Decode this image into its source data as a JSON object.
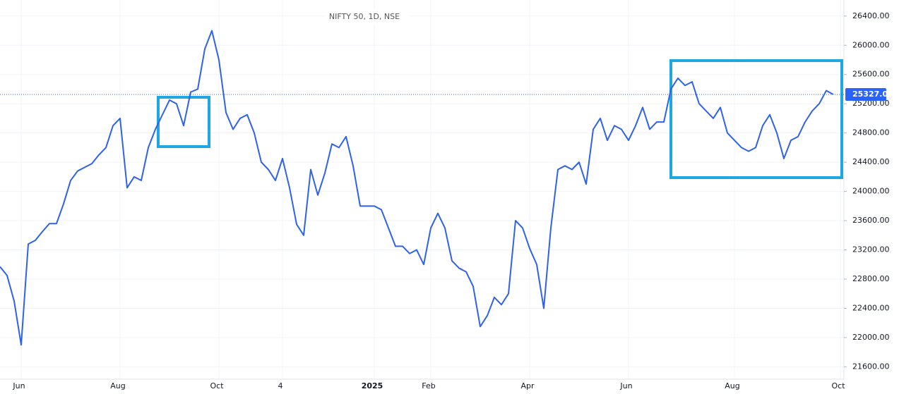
{
  "chart_data": {
    "type": "line",
    "title": "NIFTY 50, 1D, NSE",
    "categories": [
      null,
      null,
      null,
      "Jun",
      null,
      null,
      null,
      null,
      null,
      null,
      null,
      null,
      null,
      null,
      null,
      null,
      null,
      "Aug",
      null,
      null,
      null,
      null,
      null,
      null,
      null,
      null,
      null,
      null,
      null,
      null,
      null,
      "Oct",
      null,
      null,
      null,
      null,
      null,
      null,
      null,
      null,
      "4",
      null,
      null,
      null,
      null,
      null,
      null,
      null,
      null,
      null,
      null,
      null,
      null,
      "2025",
      null,
      null,
      null,
      null,
      null,
      null,
      null,
      "Feb",
      null,
      null,
      null,
      null,
      null,
      null,
      null,
      null,
      null,
      null,
      null,
      null,
      null,
      "Apr",
      null,
      null,
      null,
      null,
      null,
      null,
      null,
      null,
      null,
      null,
      null,
      null,
      null,
      "Jun",
      null,
      null,
      null,
      null,
      null,
      null,
      null,
      null,
      null,
      null,
      null,
      null,
      null,
      null,
      "Aug",
      null,
      null,
      null,
      null,
      null,
      null,
      null,
      null,
      null,
      null,
      null,
      null,
      null,
      null,
      "Oct"
    ],
    "series": [
      {
        "name": "NIFTY 50",
        "color": "#2f62e6",
        "values": [
          22970,
          22850,
          22500,
          21900,
          23280,
          23330,
          23450,
          23560,
          23560,
          23830,
          24150,
          24280,
          24330,
          24380,
          24500,
          24600,
          24900,
          25000,
          24050,
          24200,
          24150,
          24600,
          24850,
          25050,
          25250,
          25200,
          24900,
          25360,
          25400,
          25950,
          26200,
          25800,
          25080,
          24850,
          25000,
          25050,
          24800,
          24400,
          24300,
          24150,
          24450,
          24050,
          23550,
          23400,
          24300,
          23950,
          24250,
          24650,
          24600,
          24750,
          24350,
          23800,
          23800,
          23800,
          23750,
          23500,
          23250,
          23250,
          23150,
          23200,
          23000,
          23500,
          23700,
          23500,
          23050,
          22950,
          22900,
          22700,
          22150,
          22300,
          22550,
          22450,
          22600,
          23600,
          23500,
          23220,
          23000,
          22400,
          23500,
          24300,
          24350,
          24300,
          24400,
          24100,
          24850,
          25000,
          24700,
          24900,
          24850,
          24700,
          24900,
          25150,
          24850,
          24950,
          24950,
          25400,
          25550,
          25450,
          25500,
          25200,
          25100,
          25000,
          25150,
          24800,
          24700,
          24600,
          24550,
          24600,
          24900,
          25050,
          24800,
          24450,
          24700,
          24750,
          24950,
          25100,
          25200,
          25380,
          25327,
          null
        ]
      }
    ],
    "last_price": 25327.05,
    "ylim": [
      21430,
      26620
    ],
    "yticks": [
      {
        "value": 21600,
        "label": "21600.00"
      },
      {
        "value": 22000,
        "label": "22000.00"
      },
      {
        "value": 22400,
        "label": "22400.00"
      },
      {
        "value": 22800,
        "label": "22800.00"
      },
      {
        "value": 23200,
        "label": "23200.00"
      },
      {
        "value": 23600,
        "label": "23600.00"
      },
      {
        "value": 24000,
        "label": "24000.00"
      },
      {
        "value": 24400,
        "label": "24400.00"
      },
      {
        "value": 24800,
        "label": "24800.00"
      },
      {
        "value": 25200,
        "label": "25200.00"
      },
      {
        "value": 25600,
        "label": "25600.00"
      },
      {
        "value": 26000,
        "label": "26000.00"
      },
      {
        "value": 26400,
        "label": "26400.00"
      }
    ],
    "grid": true
  }
}
